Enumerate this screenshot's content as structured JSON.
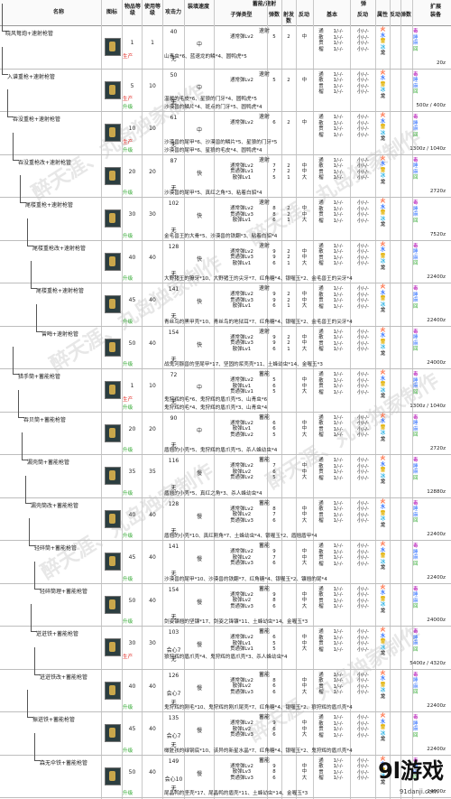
{
  "header": {
    "name": "名称",
    "icon": "图标",
    "item_level": "物品等级",
    "use_level": "使用等级",
    "attack": "攻击力",
    "reload_speed": "装填速度",
    "charge_rapid": "蓄能/速射",
    "bullet_type": "子弹类型",
    "ammo_count": "弹数",
    "shots": "射发数",
    "recoil": "反动",
    "ammo": "弹",
    "basic": "基本",
    "recoil2": "反动",
    "element": "属性",
    "recoil3": "反动",
    "shots2": "弹数",
    "ext": "扩展",
    "equip": "装备"
  },
  "labels": {
    "produce": "生产",
    "upgrade": "升级",
    "rapid": "速射",
    "charge": "蓄能",
    "none": "无"
  },
  "rows": [
    {
      "name": "晓风弩炮+速射枪管",
      "lv": "1",
      "use": "1",
      "atk": "40",
      "speed": "中",
      "mode": "速射",
      "bullets": "通常弹Lv2",
      "count": "5",
      "shot": "2",
      "rec": "中",
      "produce": "山青虫*6、蓝速龙的鳞*4、圆鸭虎*5",
      "upgrade": "",
      "price": "20z"
    },
    {
      "name": "入谱重枪+速射枪管",
      "lv": "5",
      "use": "10",
      "atk": "50",
      "speed": "中",
      "mode": "速射",
      "bullets": "通常弹Lv2",
      "count": "5",
      "shot": "2",
      "rec": "中",
      "produce": "温暖的毛皮*6、星狼的门牙*4、圆鸭虎*5",
      "upgrade": "沙漠兽的鳞片*4、斑点的门牙*5、圆鸭虎*4",
      "price": "500z / 400z"
    },
    {
      "name": "吞没重枪+速射枪管",
      "lv": "10",
      "use": "10",
      "atk": "61",
      "speed": "中",
      "mode": "速射",
      "bullets": "通常弹Lv2",
      "count": "6",
      "shot": "2",
      "rec": "中",
      "produce": "沙漠兽的尾甲*6、沙漠兽的鳞片*5、星狼的门牙*5",
      "upgrade": "沙漠兽的尾甲*6、星狼的毛皮*4、圆鸭虎*4",
      "price": "1300z / 1040z"
    },
    {
      "name": "吞没重枪改+速射枪管",
      "lv": "20",
      "use": "20",
      "atk": "87",
      "speed": "快",
      "mode": "速射",
      "bullets": "通常弹Lv2 / 贯通弹Lv1 / 散弹Lv1",
      "count": "7 / 7 / 5",
      "shot": "2 / 2 / 1",
      "rec": "中 / 中 / 大",
      "produce": "",
      "upgrade": "沙漠兽的尾甲*5、真红之角*3、粘着白貂*4",
      "price": "2720z"
    },
    {
      "name": "尾楼重枪+速射枪管",
      "lv": "30",
      "use": "30",
      "atk": "102",
      "speed": "快",
      "mode": "速射",
      "bullets": "通常弹Lv2 / 贯通弹Lv3 / 散弹Lv1",
      "count": "8 / 8 / 6",
      "shot": "2 / 2 / 1",
      "rec": "中 / 中 / 大",
      "produce": "",
      "upgrade": "金毛兽王的大骨*5、沙漠兽的铁翻*3、粘着白貂*4",
      "price": "7520z"
    },
    {
      "name": "尾楼重枪改+速射枪管",
      "lv": "40",
      "use": "40",
      "atk": "128",
      "speed": "快",
      "mode": "速射",
      "bullets": "通常弹Lv2 / 贯通弹Lv3 / 散弹Lv1",
      "count": "9 / 9 / 6",
      "shot": "2 / 2 / 1",
      "rec": "中 / 中 / 大",
      "produce": "",
      "upgrade": "大野猪王的獠牙*10、大野猪王的尖牙*7、红角糖*4、银喔玉*2、金毛兽王的尖牙*4",
      "price": "22400z"
    },
    {
      "name": "尾楼重枪+速射枪管",
      "lv": "45",
      "use": "40",
      "atk": "141",
      "speed": "快",
      "mode": "速射",
      "bullets": "通常弹Lv2 / 贯通弹Lv3 / 散弹Lv1",
      "count": "9 / 9 / 6",
      "shot": "2 / 2 / 1",
      "rec": "中 / 中 / 大",
      "produce": "",
      "upgrade": "青丝鸟的黑甲壳*10、青丝鸟的地狱耳*7、红角糖*4、银喔玉*2、金毛兽王的尖牙*4",
      "price": "22400z"
    },
    {
      "name": "曾晦+速射枪管",
      "lv": "50",
      "use": "40",
      "atk": "154",
      "speed": "快",
      "mode": "速射",
      "bullets": "通常弹Lv2 / 贯通弹Lv3 / 散弹Lv1",
      "count": "9 / 9 / 6",
      "shot": "2 / 2 / 1",
      "rec": "中 / 中 / 大",
      "produce": "",
      "upgrade": "战鬼河豚兽的坚尾甲*17、坚固的浆壳壳*11、土蜂幼虫*14、金喔玉*3",
      "price": "24000z"
    },
    {
      "name": "猎手筒+蓄能枪管",
      "lv": "1",
      "use": "10",
      "atk": "72",
      "speed": "中",
      "mode": "蓄能",
      "bullets": "通常弹Lv2 / 散弹Lv1 / 贯通弹Lv1",
      "count": "5 / 6 / 5",
      "shot": "",
      "rec": "中 / 中 / 大",
      "produce": "鬼狩辉的毛*6、鬼狩辉的盾爪壳*5、山青虫*6",
      "upgrade": "鬼狩辉的毛*4、鬼狩辉的盾爪壳*3、山青虫*4",
      "price": "1300z / 1040z"
    },
    {
      "name": "吞贝筒+蓄能枪管",
      "lv": "20",
      "use": "20",
      "atk": "90",
      "speed": "中",
      "mode": "蓄能",
      "bullets": "通常弹Lv2 / 散弹Lv1 / 贯通弹Lv2",
      "count": "6 / 6 / 5",
      "shot": "",
      "rec": "中 / 中 / 大",
      "produce": "",
      "upgrade": "盾翘的小壳*5、鬼狩辉的盾爪壳*5、杀人蜂幼虫*4",
      "price": "2720z"
    },
    {
      "name": "漏壳筒+蓄能枪管",
      "lv": "35",
      "use": "35",
      "atk": "116",
      "speed": "慢",
      "mode": "蓄能",
      "bullets": "通常弹Lv2 / 散弹Lv2 / 贯通弹Lv2",
      "count": "7 / 6 / 5",
      "shot": "",
      "rec": "中 / 中 / 大",
      "produce": "",
      "upgrade": "盾翘的小壳*5、真红之角*3、杀人蜂幼虫*4",
      "price": "12880z"
    },
    {
      "name": "漏壳筒改+蓄能枪管",
      "lv": "40",
      "use": "40",
      "atk": "128",
      "speed": "慢",
      "mode": "蓄能",
      "bullets": "通常弹Lv2 / 散弹Lv2 / 贯通弹Lv3",
      "count": "8 / 7 / 6",
      "shot": "",
      "rec": "中 / 中 / 大",
      "produce": "",
      "upgrade": "盾翘的小壳*10、真红刚角*7、土蜂幼虫*4、银喔玉*2、盾翘盾甲*4",
      "price": "22400z"
    },
    {
      "name": "轻碎筒+蓄能枪管",
      "lv": "45",
      "use": "40",
      "atk": "141",
      "speed": "慢",
      "mode": "蓄能",
      "bullets": "通常弹Lv2 / 散弹Lv2 / 贯通弹Lv3",
      "count": "9 / 7 / 6",
      "shot": "",
      "rec": "中 / 中 / 大",
      "produce": "",
      "upgrade": "沙漠兽的尾甲*10、沙漠兽的铁翻*7、红角糖*4、银喔玉*2、镰翘的尾*4",
      "price": "22400z"
    },
    {
      "name": "轻碎筒理+蓄能枪管",
      "lv": "50",
      "use": "40",
      "atk": "154",
      "speed": "慢",
      "mode": "蓄能",
      "bullets": "通常弹Lv2 / 散弹Lv2 / 贯通弹Lv3",
      "count": "9 / 8 / 6",
      "shot": "",
      "rec": "中 / 中 / 大",
      "produce": "",
      "upgrade": "剑姿镰翘的坚镰*17、剑姿之锋镰*11、土蜂幼虫*14、金喔玉*3",
      "price": "24000z"
    },
    {
      "name": "迸迸铁+蓄能枪管",
      "lv": "30",
      "use": "30",
      "atk": "103",
      "speed": "慢",
      "mode": "蓄能",
      "bullets": "通常弹Lv2 / 散弹Lv1 / 贯通弹Lv1",
      "count": "6 / 5 / 5",
      "shot": "",
      "rec": "中 / 中 / 大",
      "produce": "狼狩辉的盾爪壳*4、鬼狩辉的盾爪壳*3、杀人蜂幼虫*4",
      "upgrade": "",
      "price": "5400z / 4320z",
      "extra": "会心7"
    },
    {
      "name": "迸迸铁改+蓄能枪管",
      "lv": "40",
      "use": "40",
      "atk": "126",
      "speed": "慢",
      "mode": "蓄能",
      "bullets": "通常弹Lv2 / 散弹Lv2 / 贯通弹Lv3",
      "count": "8 / 6 / 6",
      "shot": "",
      "rec": "中 / 中 / 大",
      "produce": "",
      "upgrade": "鬼狩辉的刚毛*10、鬼狩辉的刚爪尾壳*7、红角糖*4、银喔玉*2、狼狩辉的盾爪壳*4",
      "price": "22400z",
      "extra": "会心7"
    },
    {
      "name": "振迸铁+蓄能枪管",
      "lv": "45",
      "use": "40",
      "atk": "135",
      "speed": "慢",
      "mode": "蓄能",
      "bullets": "通常弹Lv2 / 散弹Lv2 / 贯通弹Lv3",
      "count": "9 / 6 / 6",
      "shot": "",
      "rec": "中 / 中 / 大",
      "produce": "",
      "upgrade": "橄脏孩的绿钢底*10、该异的新星水晶*7、红角糖*4、银喔玉*2、鬼狩辉的盾爪壳*4",
      "price": "22400z",
      "extra": "会心7"
    },
    {
      "name": "森无伞铁+蓄能枪管",
      "lv": "50",
      "use": "40",
      "atk": "149",
      "speed": "慢",
      "mode": "蓄能",
      "bullets": "通常弹Lv2 / 散弹Lv3 / 贯通弹Lv3",
      "count": "9 / 8 / 6",
      "shot": "",
      "rec": "中 / 中 / 大",
      "produce": "",
      "upgrade": "尾晶鸭的坚壳*17、尾晶鸭的盾壳*11、土蜂幼虫*14、金喔玉*3",
      "price": "24000z",
      "extra": "会心10"
    }
  ],
  "ammo_basic": "通 / 散 / 贯 / 榴",
  "ammo_basic_vals": "1/-/- / 1/-/- / 1/-/- / 1/-/-",
  "ammo_recoil": "小/-/- / 小/-/- / 小/-/- / 小/-/-",
  "elements": {
    "fire": "火",
    "water": "水",
    "thunder": "雷",
    "ice": "冰",
    "dragon": "龙"
  },
  "aug": {
    "poison": "毒",
    "sleep": "睡",
    "para": "麻",
    "recover": "回"
  },
  "watermark": "醉天涯、丸岛独家制作",
  "logo": "9l游戏",
  "site": "91danji.com"
}
